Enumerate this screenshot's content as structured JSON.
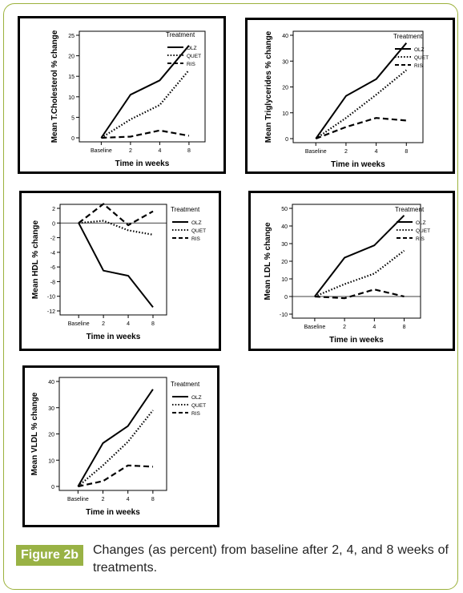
{
  "figure": {
    "label": "Figure 2b",
    "caption": "Changes (as percent) from baseline after 2, 4, and 8 weeks of treatments."
  },
  "legend": {
    "title": "Treatment",
    "entries": [
      {
        "name": "OLZ",
        "style": "solid"
      },
      {
        "name": "QUET",
        "style": "dotted"
      },
      {
        "name": "RIS",
        "style": "dashed"
      }
    ]
  },
  "colors": {
    "frame": "#9cb23c",
    "label_bg": "#99b245",
    "lines": "#000000"
  },
  "chart_data": [
    {
      "type": "line",
      "ylabel": "Mean T.Cholesterol % change",
      "xlabel": "Time in weeks",
      "categories": [
        "Baseline",
        "2",
        "4",
        "8"
      ],
      "ylim": [
        0,
        25
      ],
      "yticks": [
        0,
        5,
        10,
        15,
        20,
        25
      ],
      "zero_line": false,
      "series": [
        {
          "name": "OLZ",
          "values": [
            0,
            10.5,
            14,
            22.5
          ]
        },
        {
          "name": "QUET",
          "values": [
            0,
            4.5,
            8,
            16.5
          ]
        },
        {
          "name": "RIS",
          "values": [
            0,
            0.3,
            1.8,
            0.5
          ]
        }
      ]
    },
    {
      "type": "line",
      "ylabel": "Mean Triglycerides % change",
      "xlabel": "Time in weeks",
      "categories": [
        "Baseline",
        "2",
        "4",
        "8"
      ],
      "ylim": [
        0,
        40
      ],
      "yticks": [
        0,
        10,
        20,
        30,
        40
      ],
      "zero_line": false,
      "series": [
        {
          "name": "OLZ",
          "values": [
            0,
            16.5,
            23,
            37
          ]
        },
        {
          "name": "QUET",
          "values": [
            0,
            8,
            17,
            26.5
          ]
        },
        {
          "name": "RIS",
          "values": [
            0,
            4.5,
            8,
            7
          ]
        }
      ]
    },
    {
      "type": "line",
      "ylabel": "Mean HDL % change",
      "xlabel": "Time in weeks",
      "categories": [
        "Baseline",
        "2",
        "4",
        "8"
      ],
      "ylim": [
        -12,
        2
      ],
      "yticks": [
        -12,
        -10,
        -8,
        -6,
        -4,
        -2,
        0,
        2
      ],
      "zero_line": true,
      "series": [
        {
          "name": "OLZ",
          "values": [
            0,
            -6.5,
            -7.2,
            -11.5
          ]
        },
        {
          "name": "QUET",
          "values": [
            0,
            0.3,
            -1,
            -1.6
          ]
        },
        {
          "name": "RIS",
          "values": [
            0,
            2.6,
            -0.3,
            1.6
          ]
        }
      ]
    },
    {
      "type": "line",
      "ylabel": "Mean LDL % change",
      "xlabel": "Time in weeks",
      "categories": [
        "Baseline",
        "2",
        "4",
        "8"
      ],
      "ylim": [
        -10,
        50
      ],
      "yticks": [
        -10,
        0,
        10,
        20,
        30,
        40,
        50
      ],
      "zero_line": true,
      "series": [
        {
          "name": "OLZ",
          "values": [
            0,
            22,
            29,
            46
          ]
        },
        {
          "name": "QUET",
          "values": [
            0,
            7,
            13,
            26
          ]
        },
        {
          "name": "RIS",
          "values": [
            0,
            -1,
            4,
            0
          ]
        }
      ]
    },
    {
      "type": "line",
      "ylabel": "Mean VLDL % change",
      "xlabel": "Time in weeks",
      "categories": [
        "Baseline",
        "2",
        "4",
        "8"
      ],
      "ylim": [
        0,
        40
      ],
      "yticks": [
        0,
        10,
        20,
        30,
        40
      ],
      "zero_line": false,
      "series": [
        {
          "name": "OLZ",
          "values": [
            0,
            16.5,
            23,
            37
          ]
        },
        {
          "name": "QUET",
          "values": [
            0,
            8,
            17,
            29
          ]
        },
        {
          "name": "RIS",
          "values": [
            0,
            2,
            8,
            7.5
          ]
        }
      ]
    }
  ]
}
